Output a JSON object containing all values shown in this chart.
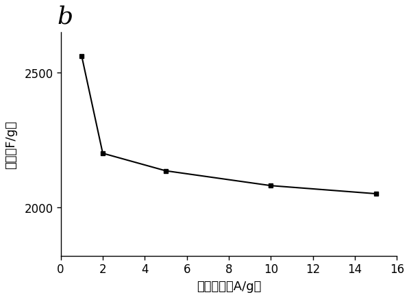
{
  "x": [
    1,
    2,
    5,
    10,
    15
  ],
  "y": [
    2560,
    2200,
    2135,
    2080,
    2050
  ],
  "xlabel": "电流密度（A/g）",
  "ylabel": "比容（F/g）",
  "label_b": "b",
  "marker": "s",
  "color": "#000000",
  "linewidth": 1.5,
  "markersize": 5,
  "xlim": [
    0,
    16
  ],
  "ylim": [
    1820,
    2650
  ],
  "xticks": [
    0,
    2,
    4,
    6,
    8,
    10,
    12,
    14,
    16
  ],
  "yticks": [
    2000,
    2500
  ],
  "label_b_fontsize": 26,
  "axis_fontsize": 13,
  "tick_fontsize": 12,
  "background_color": "#ffffff"
}
